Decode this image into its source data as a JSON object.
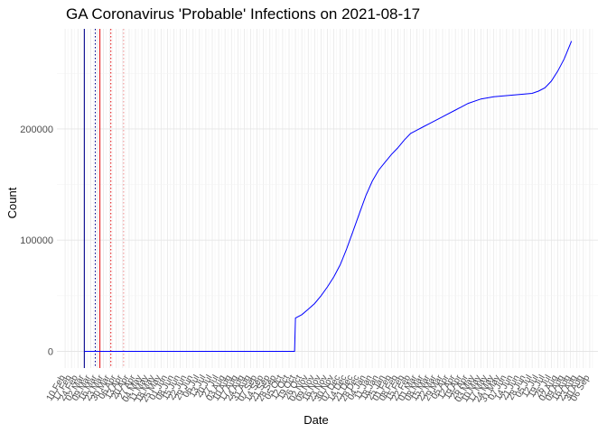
{
  "chart_data": {
    "type": "line",
    "title": "GA Coronavirus 'Probable' Infections on 2021-08-17",
    "xlabel": "Date",
    "ylabel": "Count",
    "xlim": [
      "2020-02-01",
      "2021-09-15"
    ],
    "ylim": [
      -15000,
      290000
    ],
    "y_ticks": [
      0,
      100000,
      200000
    ],
    "x_tick_first": "2020-02-10",
    "x_tick_step_days": 7,
    "x_tick_labels": [
      "10 Feb",
      "17 Feb",
      "24 Feb",
      "02 Mar",
      "09 Mar",
      "16 Mar",
      "23 Mar",
      "30 Mar",
      "06 Apr",
      "13 Apr",
      "20 Apr",
      "27 Apr",
      "04 May",
      "11 May",
      "18 May",
      "25 May",
      "01 Jun",
      "08 Jun",
      "15 Jun",
      "22 Jun",
      "29 Jun",
      "06 Jul",
      "13 Jul",
      "20 Jul",
      "27 Jul",
      "03 Aug",
      "10 Aug",
      "17 Aug",
      "24 Aug",
      "31 Aug",
      "07 Sep",
      "14 Sep",
      "21 Sep",
      "28 Sep",
      "05 Oct",
      "12 Oct",
      "19 Oct",
      "26 Oct",
      "02 Nov",
      "09 Nov",
      "16 Nov",
      "23 Nov",
      "30 Nov",
      "07 Dec",
      "14 Dec",
      "21 Dec",
      "28 Dec",
      "04 Jan",
      "11 Jan",
      "18 Jan",
      "25 Jan",
      "01 Feb",
      "08 Feb",
      "15 Feb",
      "22 Feb",
      "01 Mar",
      "08 Mar",
      "15 Mar",
      "22 Mar",
      "29 Mar",
      "05 Apr",
      "12 Apr",
      "19 Apr",
      "26 Apr",
      "03 May",
      "10 May",
      "17 May",
      "24 May",
      "31 May",
      "07 Jun",
      "14 Jun",
      "21 Jun",
      "28 Jun",
      "05 Jul",
      "12 Jul",
      "19 Jul",
      "26 Jul",
      "02 Aug",
      "09 Aug",
      "16 Aug",
      "23 Aug",
      "30 Aug",
      "06 Sep"
    ],
    "grid": true,
    "series": [
      {
        "color": "#0000ff",
        "x": [
          "2020-03-02",
          "2020-06-01",
          "2020-10-18",
          "2020-10-19",
          "2020-10-26",
          "2020-11-02",
          "2020-11-09",
          "2020-11-16",
          "2020-11-23",
          "2020-11-30",
          "2020-12-07",
          "2020-12-14",
          "2020-12-21",
          "2020-12-28",
          "2021-01-04",
          "2021-01-11",
          "2021-01-18",
          "2021-01-25",
          "2021-02-01",
          "2021-02-08",
          "2021-02-15",
          "2021-02-22",
          "2021-03-01",
          "2021-03-08",
          "2021-03-15",
          "2021-03-29",
          "2021-04-12",
          "2021-04-26",
          "2021-05-10",
          "2021-05-24",
          "2021-06-07",
          "2021-06-21",
          "2021-07-05",
          "2021-07-12",
          "2021-07-19",
          "2021-07-26",
          "2021-08-02",
          "2021-08-09",
          "2021-08-17"
        ],
        "y": [
          0,
          0,
          0,
          30000,
          33000,
          38000,
          43000,
          50000,
          58000,
          67000,
          78000,
          92000,
          108000,
          124000,
          140000,
          153000,
          163000,
          170000,
          177000,
          183000,
          190000,
          196000,
          199000,
          202000,
          205000,
          211000,
          217000,
          223000,
          227000,
          229000,
          230000,
          231000,
          232000,
          234000,
          237000,
          243000,
          252000,
          263000,
          279000
        ]
      }
    ],
    "vlines": [
      {
        "date": "2020-03-02",
        "color": "#00008b",
        "style": "solid"
      },
      {
        "date": "2020-03-14",
        "color": "#00008b",
        "style": "dotted"
      },
      {
        "date": "2020-03-19",
        "color": "#e41a1c",
        "style": "solid"
      },
      {
        "date": "2020-03-31",
        "color": "#e41a1c",
        "style": "dotted"
      },
      {
        "date": "2020-04-14",
        "color": "#e41a1c",
        "style": "dotted-faint"
      }
    ]
  }
}
